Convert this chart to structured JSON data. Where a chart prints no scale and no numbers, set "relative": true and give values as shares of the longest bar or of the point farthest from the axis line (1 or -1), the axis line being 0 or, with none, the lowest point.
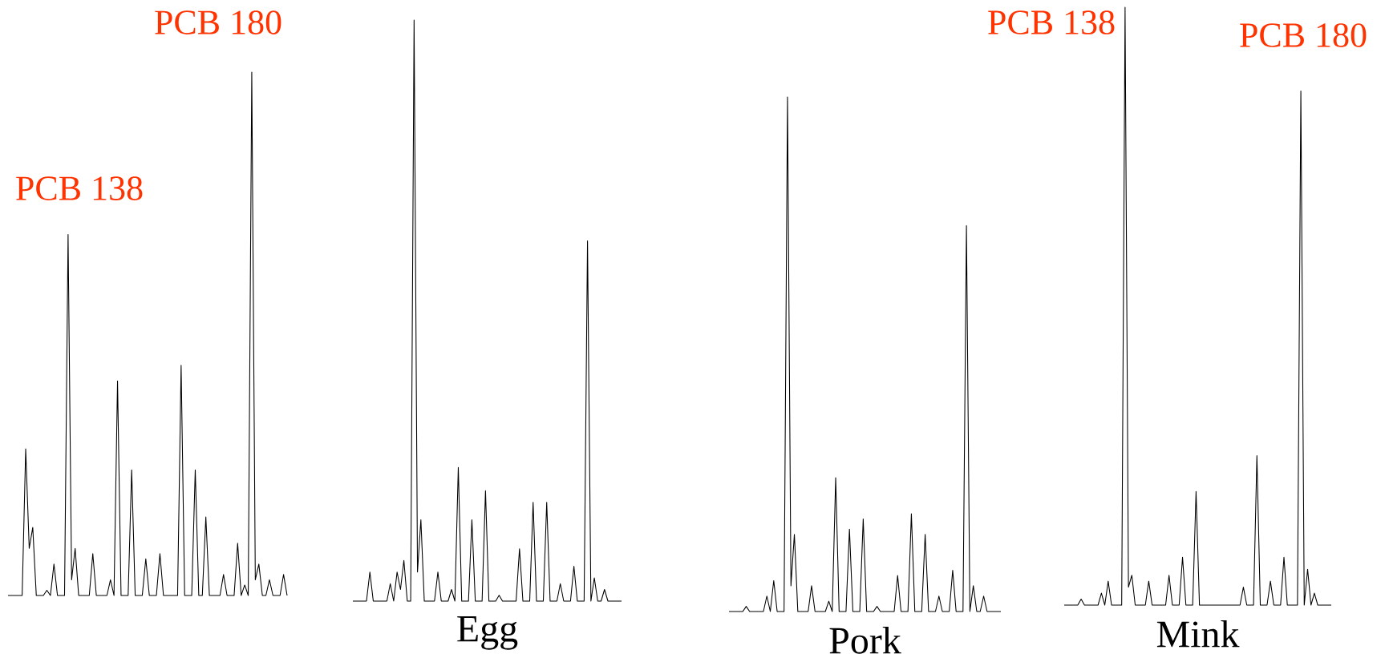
{
  "chart_data": [
    {
      "type": "line",
      "relative": true,
      "color": "#000000",
      "categories": [
        null,
        null,
        null,
        null,
        null,
        null,
        null,
        null,
        null,
        null,
        null,
        null,
        null,
        null,
        null,
        null,
        null,
        null,
        null,
        null,
        null,
        null,
        null,
        null,
        null,
        null,
        null,
        null,
        null,
        null,
        null,
        null,
        null,
        null,
        null,
        null,
        null,
        null,
        null,
        null,
        null,
        null,
        null,
        null,
        null,
        null,
        null,
        null,
        null,
        null,
        null,
        null,
        null,
        null,
        null,
        null,
        null,
        null,
        null,
        null,
        null,
        null,
        null,
        null,
        null,
        null,
        null,
        null,
        null,
        null,
        null,
        null,
        null,
        null,
        null,
        null,
        null,
        null,
        null,
        null
      ],
      "values": [
        0,
        0,
        0,
        0,
        0,
        0.28,
        0.09,
        0.13,
        0,
        0,
        0,
        0.01,
        0,
        0.06,
        0,
        0,
        0,
        0.69,
        0.03,
        0.09,
        0,
        0,
        0,
        0,
        0.08,
        0,
        0,
        0,
        0,
        0.03,
        0,
        0.41,
        0,
        0,
        0,
        0.24,
        0,
        0,
        0,
        0.07,
        0,
        0,
        0,
        0.08,
        0,
        0,
        0,
        0,
        0,
        0.44,
        0,
        0,
        0,
        0.24,
        0,
        0,
        0.15,
        0,
        0,
        0,
        0,
        0.04,
        0,
        0,
        0,
        0.1,
        0,
        0.02,
        0,
        1,
        0.03,
        0.06,
        0,
        0,
        0.03,
        0,
        0,
        0,
        0.04,
        0
      ],
      "annotations": [
        "PCB 138",
        "PCB 180"
      ]
    },
    {
      "type": "line",
      "relative": true,
      "color": "#000000",
      "title": "Egg",
      "categories": [
        null,
        null,
        null,
        null,
        null,
        null,
        null,
        null,
        null,
        null,
        null,
        null,
        null,
        null,
        null,
        null,
        null,
        null,
        null,
        null,
        null,
        null,
        null,
        null,
        null,
        null,
        null,
        null,
        null,
        null,
        null,
        null,
        null,
        null,
        null,
        null,
        null,
        null,
        null,
        null,
        null,
        null,
        null,
        null,
        null,
        null,
        null,
        null,
        null,
        null,
        null,
        null,
        null,
        null,
        null,
        null,
        null,
        null,
        null,
        null,
        null,
        null,
        null,
        null,
        null,
        null,
        null,
        null,
        null,
        null,
        null,
        null,
        null,
        null,
        null,
        null,
        null,
        null,
        null,
        null
      ],
      "values": [
        0,
        0,
        0,
        0,
        0,
        0.05,
        0,
        0,
        0,
        0,
        0,
        0.03,
        0,
        0.05,
        0.02,
        0.07,
        0,
        0,
        1,
        0.05,
        0.14,
        0,
        0,
        0,
        0,
        0.05,
        0,
        0,
        0,
        0.02,
        0,
        0.23,
        0,
        0,
        0,
        0.14,
        0,
        0,
        0,
        0.19,
        0,
        0,
        0,
        0.01,
        0,
        0,
        0,
        0,
        0,
        0.09,
        0,
        0,
        0,
        0.17,
        0,
        0,
        0,
        0.17,
        0,
        0,
        0,
        0.03,
        0,
        0,
        0,
        0.06,
        0,
        0,
        0,
        0.62,
        0,
        0.04,
        0,
        0,
        0.02,
        0,
        0,
        0,
        0,
        0
      ]
    },
    {
      "type": "line",
      "relative": true,
      "color": "#000000",
      "title": "Pork",
      "categories": [
        null,
        null,
        null,
        null,
        null,
        null,
        null,
        null,
        null,
        null,
        null,
        null,
        null,
        null,
        null,
        null,
        null,
        null,
        null,
        null,
        null,
        null,
        null,
        null,
        null,
        null,
        null,
        null,
        null,
        null,
        null,
        null,
        null,
        null,
        null,
        null,
        null,
        null,
        null,
        null,
        null,
        null,
        null,
        null,
        null,
        null,
        null,
        null,
        null,
        null,
        null,
        null,
        null,
        null,
        null,
        null,
        null,
        null,
        null,
        null,
        null,
        null,
        null,
        null,
        null,
        null,
        null,
        null,
        null,
        null,
        null,
        null,
        null,
        null,
        null,
        null,
        null,
        null,
        null,
        null
      ],
      "values": [
        0,
        0,
        0,
        0,
        0,
        0.01,
        0,
        0,
        0,
        0,
        0,
        0.03,
        0,
        0.06,
        0,
        0,
        0,
        1,
        0.05,
        0.15,
        0,
        0,
        0,
        0,
        0.05,
        0,
        0,
        0,
        0,
        0.02,
        0,
        0.26,
        0,
        0,
        0,
        0.16,
        0,
        0,
        0,
        0.18,
        0,
        0,
        0,
        0.01,
        0,
        0,
        0,
        0,
        0,
        0.07,
        0,
        0,
        0,
        0.19,
        0,
        0,
        0,
        0.15,
        0,
        0,
        0,
        0.03,
        0,
        0,
        0,
        0.08,
        0,
        0,
        0,
        0.75,
        0,
        0.05,
        0,
        0,
        0.03,
        0,
        0,
        0,
        0,
        0
      ]
    },
    {
      "type": "line",
      "relative": true,
      "color": "#000000",
      "title": "Mink",
      "categories": [
        null,
        null,
        null,
        null,
        null,
        null,
        null,
        null,
        null,
        null,
        null,
        null,
        null,
        null,
        null,
        null,
        null,
        null,
        null,
        null,
        null,
        null,
        null,
        null,
        null,
        null,
        null,
        null,
        null,
        null,
        null,
        null,
        null,
        null,
        null,
        null,
        null,
        null,
        null,
        null,
        null,
        null,
        null,
        null,
        null,
        null,
        null,
        null,
        null,
        null,
        null,
        null,
        null,
        null,
        null,
        null,
        null,
        null,
        null,
        null,
        null,
        null,
        null,
        null,
        null,
        null,
        null,
        null,
        null,
        null,
        null,
        null,
        null,
        null,
        null,
        null,
        null,
        null,
        null,
        null
      ],
      "values": [
        0,
        0,
        0,
        0,
        0,
        0.01,
        0,
        0,
        0,
        0,
        0,
        0.02,
        0,
        0.04,
        0,
        0,
        0,
        0,
        1,
        0.03,
        0.05,
        0,
        0,
        0,
        0,
        0.04,
        0,
        0,
        0,
        0,
        0,
        0.05,
        0,
        0,
        0,
        0.08,
        0,
        0,
        0,
        0.19,
        0,
        0,
        0,
        0,
        0,
        0,
        0,
        0,
        0,
        0,
        0,
        0,
        0,
        0.03,
        0,
        0,
        0,
        0.25,
        0,
        0,
        0,
        0.04,
        0,
        0,
        0,
        0.08,
        0,
        0,
        0,
        0,
        0.86,
        0,
        0.06,
        0,
        0.02,
        0,
        0,
        0,
        0,
        0
      ],
      "annotations": [
        "PCB 138",
        "PCB 180"
      ]
    }
  ]
}
